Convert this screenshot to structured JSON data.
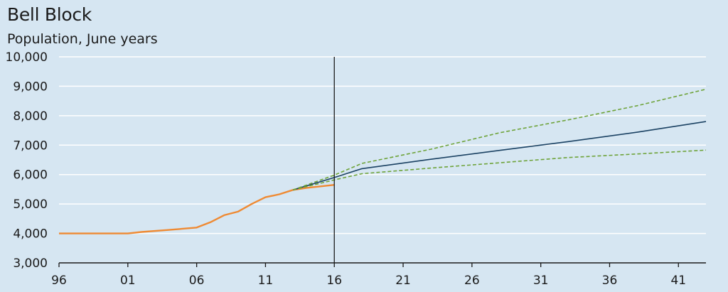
{
  "chart_data": {
    "type": "line",
    "title": "Bell Block",
    "subtitle": "Population, June years",
    "xlabel": "",
    "ylabel": "",
    "xlim": [
      1996,
      2043
    ],
    "ylim": [
      3000,
      10000
    ],
    "y_ticks": [
      3000,
      4000,
      5000,
      6000,
      7000,
      8000,
      9000,
      10000
    ],
    "y_tick_labels": [
      "3,000",
      "4,000",
      "5,000",
      "6,000",
      "7,000",
      "8,000",
      "9,000",
      "10,000"
    ],
    "x_ticks": [
      1996,
      2001,
      2006,
      2011,
      2016,
      2021,
      2026,
      2031,
      2036,
      2041
    ],
    "x_tick_labels": [
      "96",
      "01",
      "06",
      "11",
      "16",
      "21",
      "26",
      "31",
      "36",
      "41"
    ],
    "grid": "horizontal",
    "vertical_marker_x": 2016,
    "colors": {
      "background": "#d6e6f2",
      "grid": "#ffffff",
      "marker": "#1a1a1a"
    },
    "series": [
      {
        "color": "#ef8a33",
        "style": "solid",
        "x": [
          1996,
          2001,
          2002,
          2004,
          2006,
          2007,
          2008,
          2009,
          2010,
          2011,
          2012,
          2013,
          2014,
          2015,
          2016
        ],
        "values": [
          4000,
          4000,
          4050,
          4120,
          4200,
          4380,
          4620,
          4740,
          5000,
          5230,
          5330,
          5480,
          5550,
          5600,
          5650
        ]
      },
      {
        "color": "#1b4263",
        "style": "solid",
        "x": [
          2013,
          2016,
          2018,
          2023,
          2028,
          2033,
          2038,
          2043
        ],
        "values": [
          5480,
          5900,
          6200,
          6520,
          6820,
          7120,
          7440,
          7800
        ]
      },
      {
        "color": "#6ea33a",
        "style": "dashed",
        "x": [
          2013,
          2016,
          2018,
          2023,
          2028,
          2033,
          2038,
          2043
        ],
        "values": [
          5480,
          5980,
          6380,
          6860,
          7420,
          7860,
          8340,
          8900
        ]
      },
      {
        "color": "#6ea33a",
        "style": "dashed",
        "x": [
          2013,
          2016,
          2018,
          2023,
          2028,
          2033,
          2038,
          2043
        ],
        "values": [
          5480,
          5820,
          6030,
          6220,
          6400,
          6580,
          6700,
          6830
        ]
      }
    ]
  }
}
